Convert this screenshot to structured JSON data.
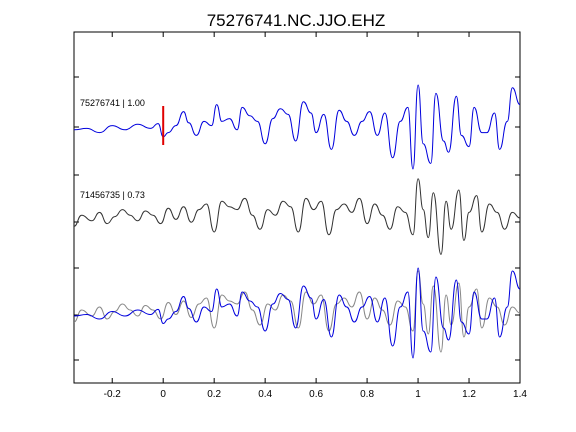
{
  "chart_data": {
    "type": "line",
    "title": "75276741.NC.JJO.EHZ",
    "xlim": [
      -0.35,
      1.4
    ],
    "x_ticks": [
      "-0.2",
      "0",
      "0.2",
      "0.4",
      "0.6",
      "0.8",
      "1",
      "1.2",
      "1.4"
    ],
    "x_tick_values": [
      -0.2,
      0,
      0.2,
      0.4,
      0.6,
      0.8,
      1.0,
      1.2,
      1.4
    ],
    "y_ticks_labeled": false,
    "grid": false,
    "pick_marker": {
      "x": 0,
      "color": "#e00000"
    },
    "annotations": [
      {
        "text": "75276741 | 1.00",
        "trace": "master"
      },
      {
        "text": "71456735 | 0.73",
        "trace": "neighbor"
      }
    ],
    "series": [
      {
        "id": "master",
        "color": "#0000dd",
        "x": [
          -0.35,
          -0.3,
          -0.25,
          -0.2,
          -0.15,
          -0.1,
          -0.05,
          -0.02,
          0.0,
          0.02,
          0.05,
          0.08,
          0.1,
          0.13,
          0.16,
          0.19,
          0.21,
          0.23,
          0.26,
          0.29,
          0.31,
          0.34,
          0.37,
          0.4,
          0.43,
          0.46,
          0.49,
          0.52,
          0.55,
          0.58,
          0.6,
          0.63,
          0.66,
          0.69,
          0.72,
          0.75,
          0.78,
          0.81,
          0.84,
          0.87,
          0.9,
          0.93,
          0.96,
          0.98,
          1.0,
          1.02,
          1.05,
          1.07,
          1.1,
          1.12,
          1.15,
          1.17,
          1.2,
          1.22,
          1.25,
          1.27,
          1.3,
          1.32,
          1.35,
          1.37,
          1.4
        ],
        "y": [
          -0.1,
          -0.05,
          -0.2,
          0.05,
          -0.1,
          0.1,
          -0.05,
          0.12,
          -0.35,
          -0.2,
          0.05,
          0.55,
          0.15,
          -0.3,
          0.2,
          0.05,
          0.8,
          0.2,
          0.3,
          -0.1,
          0.7,
          0.4,
          0.2,
          -0.6,
          0.3,
          0.65,
          0.45,
          -0.5,
          0.9,
          0.5,
          -0.2,
          0.45,
          -0.8,
          0.6,
          0.2,
          -0.3,
          0.2,
          0.55,
          -0.3,
          0.5,
          -1.1,
          0.2,
          0.7,
          -1.5,
          1.5,
          -0.6,
          -1.3,
          1.2,
          -0.5,
          -0.9,
          1.1,
          -0.3,
          -0.7,
          0.7,
          -0.2,
          -0.2,
          0.5,
          -0.8,
          0.2,
          1.4,
          0.8
        ]
      },
      {
        "id": "neighbor",
        "color": "#333333",
        "x": [
          -0.35,
          -0.32,
          -0.28,
          -0.25,
          -0.22,
          -0.19,
          -0.16,
          -0.13,
          -0.1,
          -0.07,
          -0.04,
          -0.01,
          0.02,
          0.05,
          0.08,
          0.11,
          0.14,
          0.17,
          0.2,
          0.23,
          0.26,
          0.29,
          0.32,
          0.35,
          0.38,
          0.41,
          0.44,
          0.47,
          0.5,
          0.53,
          0.56,
          0.59,
          0.62,
          0.65,
          0.68,
          0.71,
          0.74,
          0.77,
          0.8,
          0.83,
          0.86,
          0.89,
          0.92,
          0.95,
          0.98,
          1.0,
          1.02,
          1.04,
          1.06,
          1.09,
          1.11,
          1.13,
          1.16,
          1.18,
          1.2,
          1.23,
          1.25,
          1.28,
          1.31,
          1.34,
          1.37,
          1.4
        ],
        "y": [
          -0.3,
          0.1,
          -0.1,
          0.2,
          -0.2,
          0.05,
          0.3,
          0.1,
          -0.1,
          0.25,
          0.1,
          -0.2,
          0.35,
          -0.05,
          0.4,
          -0.15,
          0.3,
          0.5,
          -0.5,
          0.6,
          0.4,
          0.3,
          0.7,
          0.1,
          -0.4,
          0.3,
          0.1,
          0.6,
          0.4,
          -0.5,
          0.7,
          0.3,
          0.6,
          -0.6,
          0.3,
          0.5,
          0.2,
          0.7,
          -0.2,
          0.5,
          0.1,
          -0.4,
          0.4,
          0.2,
          -0.6,
          1.4,
          0.3,
          -0.7,
          0.9,
          -1.3,
          0.6,
          -0.4,
          1.0,
          -0.8,
          0.2,
          0.8,
          -0.5,
          0.5,
          0.2,
          -0.4,
          0.2,
          0.0
        ]
      }
    ]
  }
}
